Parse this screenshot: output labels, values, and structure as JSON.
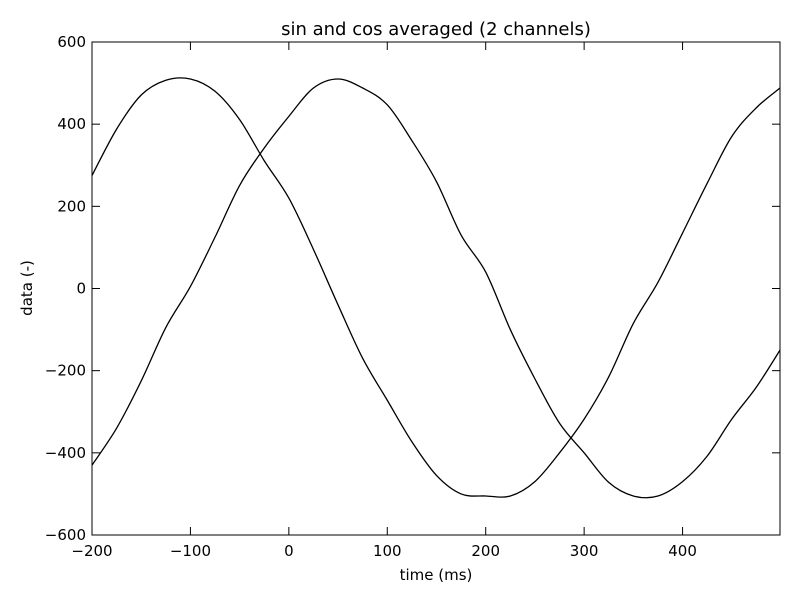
{
  "chart_data": {
    "type": "line",
    "title": "sin and cos averaged (2 channels)",
    "xlabel": "time (ms)",
    "ylabel": "data (-)",
    "xlim": [
      -200,
      499
    ],
    "ylim": [
      -600,
      600
    ],
    "xticks": [
      -200,
      -100,
      0,
      100,
      200,
      300,
      400
    ],
    "xtick_labels": [
      "−200",
      "−100",
      "0",
      "100",
      "200",
      "300",
      "400"
    ],
    "yticks": [
      600,
      400,
      200,
      0,
      -200,
      -400,
      -600
    ],
    "ytick_labels": [
      "600",
      "400",
      "200",
      "0",
      "−200",
      "−400",
      "−600"
    ],
    "grid": false,
    "line_color": "#000000",
    "series": [
      {
        "x": [
          -200,
          -175,
          -150,
          -125,
          -100,
          -75,
          -50,
          -25,
          0,
          25,
          50,
          75,
          100,
          125,
          150,
          175,
          200,
          225,
          250,
          275,
          300,
          325,
          350,
          375,
          400,
          425,
          450,
          475,
          499
        ],
        "y": [
          275,
          388,
          471,
          507,
          510,
          480,
          411,
          311,
          220,
          95,
          -40,
          -170,
          -272,
          -373,
          -455,
          -500,
          -505,
          -505,
          -470,
          -400,
          -318,
          -215,
          -85,
          15,
          135,
          256,
          370,
          440,
          488
        ]
      },
      {
        "x": [
          -200,
          -175,
          -150,
          -125,
          -100,
          -75,
          -50,
          -25,
          0,
          25,
          50,
          75,
          100,
          125,
          150,
          175,
          200,
          225,
          250,
          275,
          300,
          325,
          350,
          375,
          400,
          425,
          450,
          475,
          499
        ],
        "y": [
          -430,
          -340,
          -225,
          -95,
          5,
          125,
          251,
          342,
          419,
          488,
          510,
          488,
          447,
          360,
          260,
          130,
          40,
          -100,
          -220,
          -328,
          -400,
          -472,
          -505,
          -505,
          -470,
          -408,
          -318,
          -240,
          -150
        ]
      }
    ]
  }
}
